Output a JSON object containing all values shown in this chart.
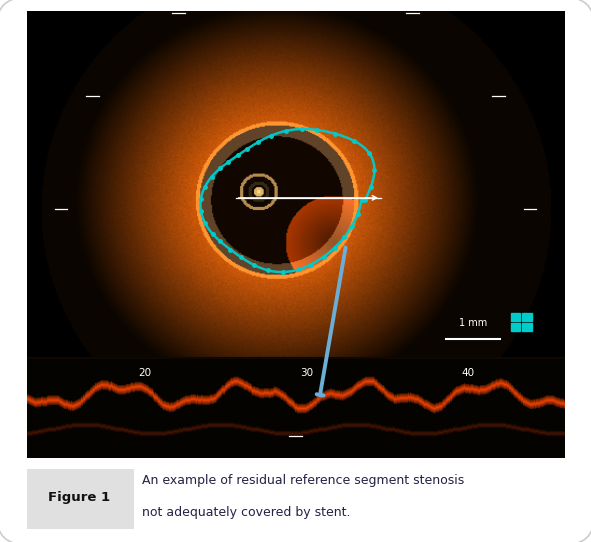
{
  "fig_width": 5.91,
  "fig_height": 5.42,
  "dpi": 100,
  "bg_color": "#ffffff",
  "figure_label": "Figure 1",
  "caption_line1": "An example of residual reference segment stenosis",
  "caption_line2": "not adequately covered by stent.",
  "label_bg": "#e0e0e0",
  "label_text_color": "#111111",
  "caption_text_color": "#222244",
  "scale_bar_text": "1 mm",
  "tick_numbers": [
    20,
    30,
    40
  ],
  "arrow_color": "#6baed6",
  "cyan_color": "#00cccc",
  "white_color": "#ffffff"
}
